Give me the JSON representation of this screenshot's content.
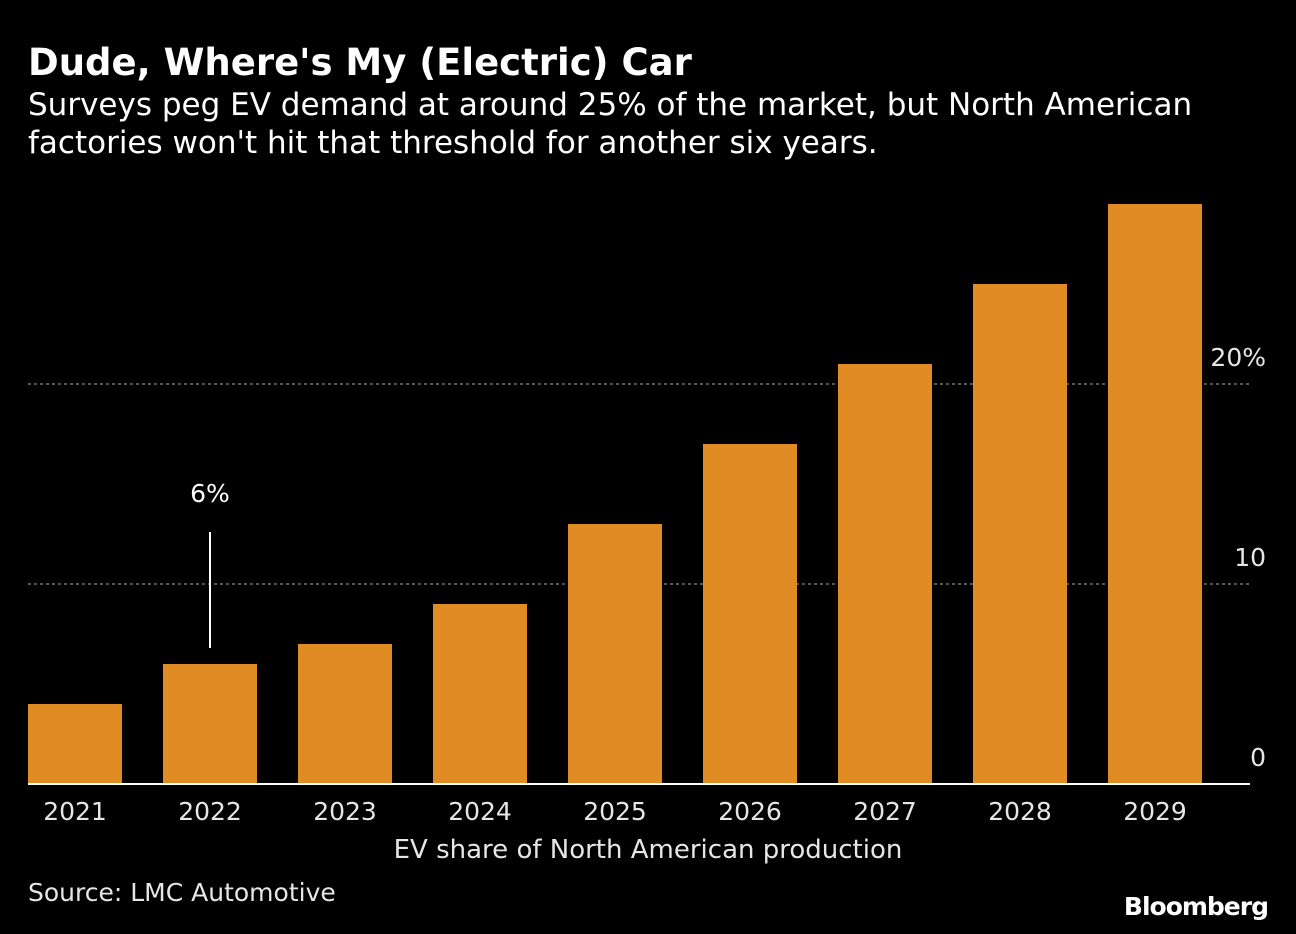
{
  "header": {
    "title": "Dude, Where's My (Electric) Car",
    "subtitle": "Surveys peg EV demand at around 25% of the market, but North American factories won't hit that threshold for another six years."
  },
  "chart_data": {
    "type": "bar",
    "categories": [
      "2021",
      "2022",
      "2023",
      "2024",
      "2025",
      "2026",
      "2027",
      "2028",
      "2029"
    ],
    "values": [
      4,
      6,
      7,
      9,
      13,
      17,
      21,
      25,
      29
    ],
    "xlabel": "EV share of North American production",
    "ylabel": "",
    "ylim": [
      0,
      29
    ],
    "y_ticks": [
      {
        "value": 0,
        "label": "0"
      },
      {
        "value": 10,
        "label": "10"
      },
      {
        "value": 20,
        "label": "20%"
      }
    ],
    "annotations": [
      {
        "category": "2022",
        "label": "6%"
      }
    ],
    "grid": true,
    "colors": {
      "bar": "#e08b23",
      "grid": "#8a8a8a",
      "axis": "#ffffff"
    }
  },
  "footer": {
    "source": "Source: LMC Automotive",
    "brand": "Bloomberg"
  }
}
